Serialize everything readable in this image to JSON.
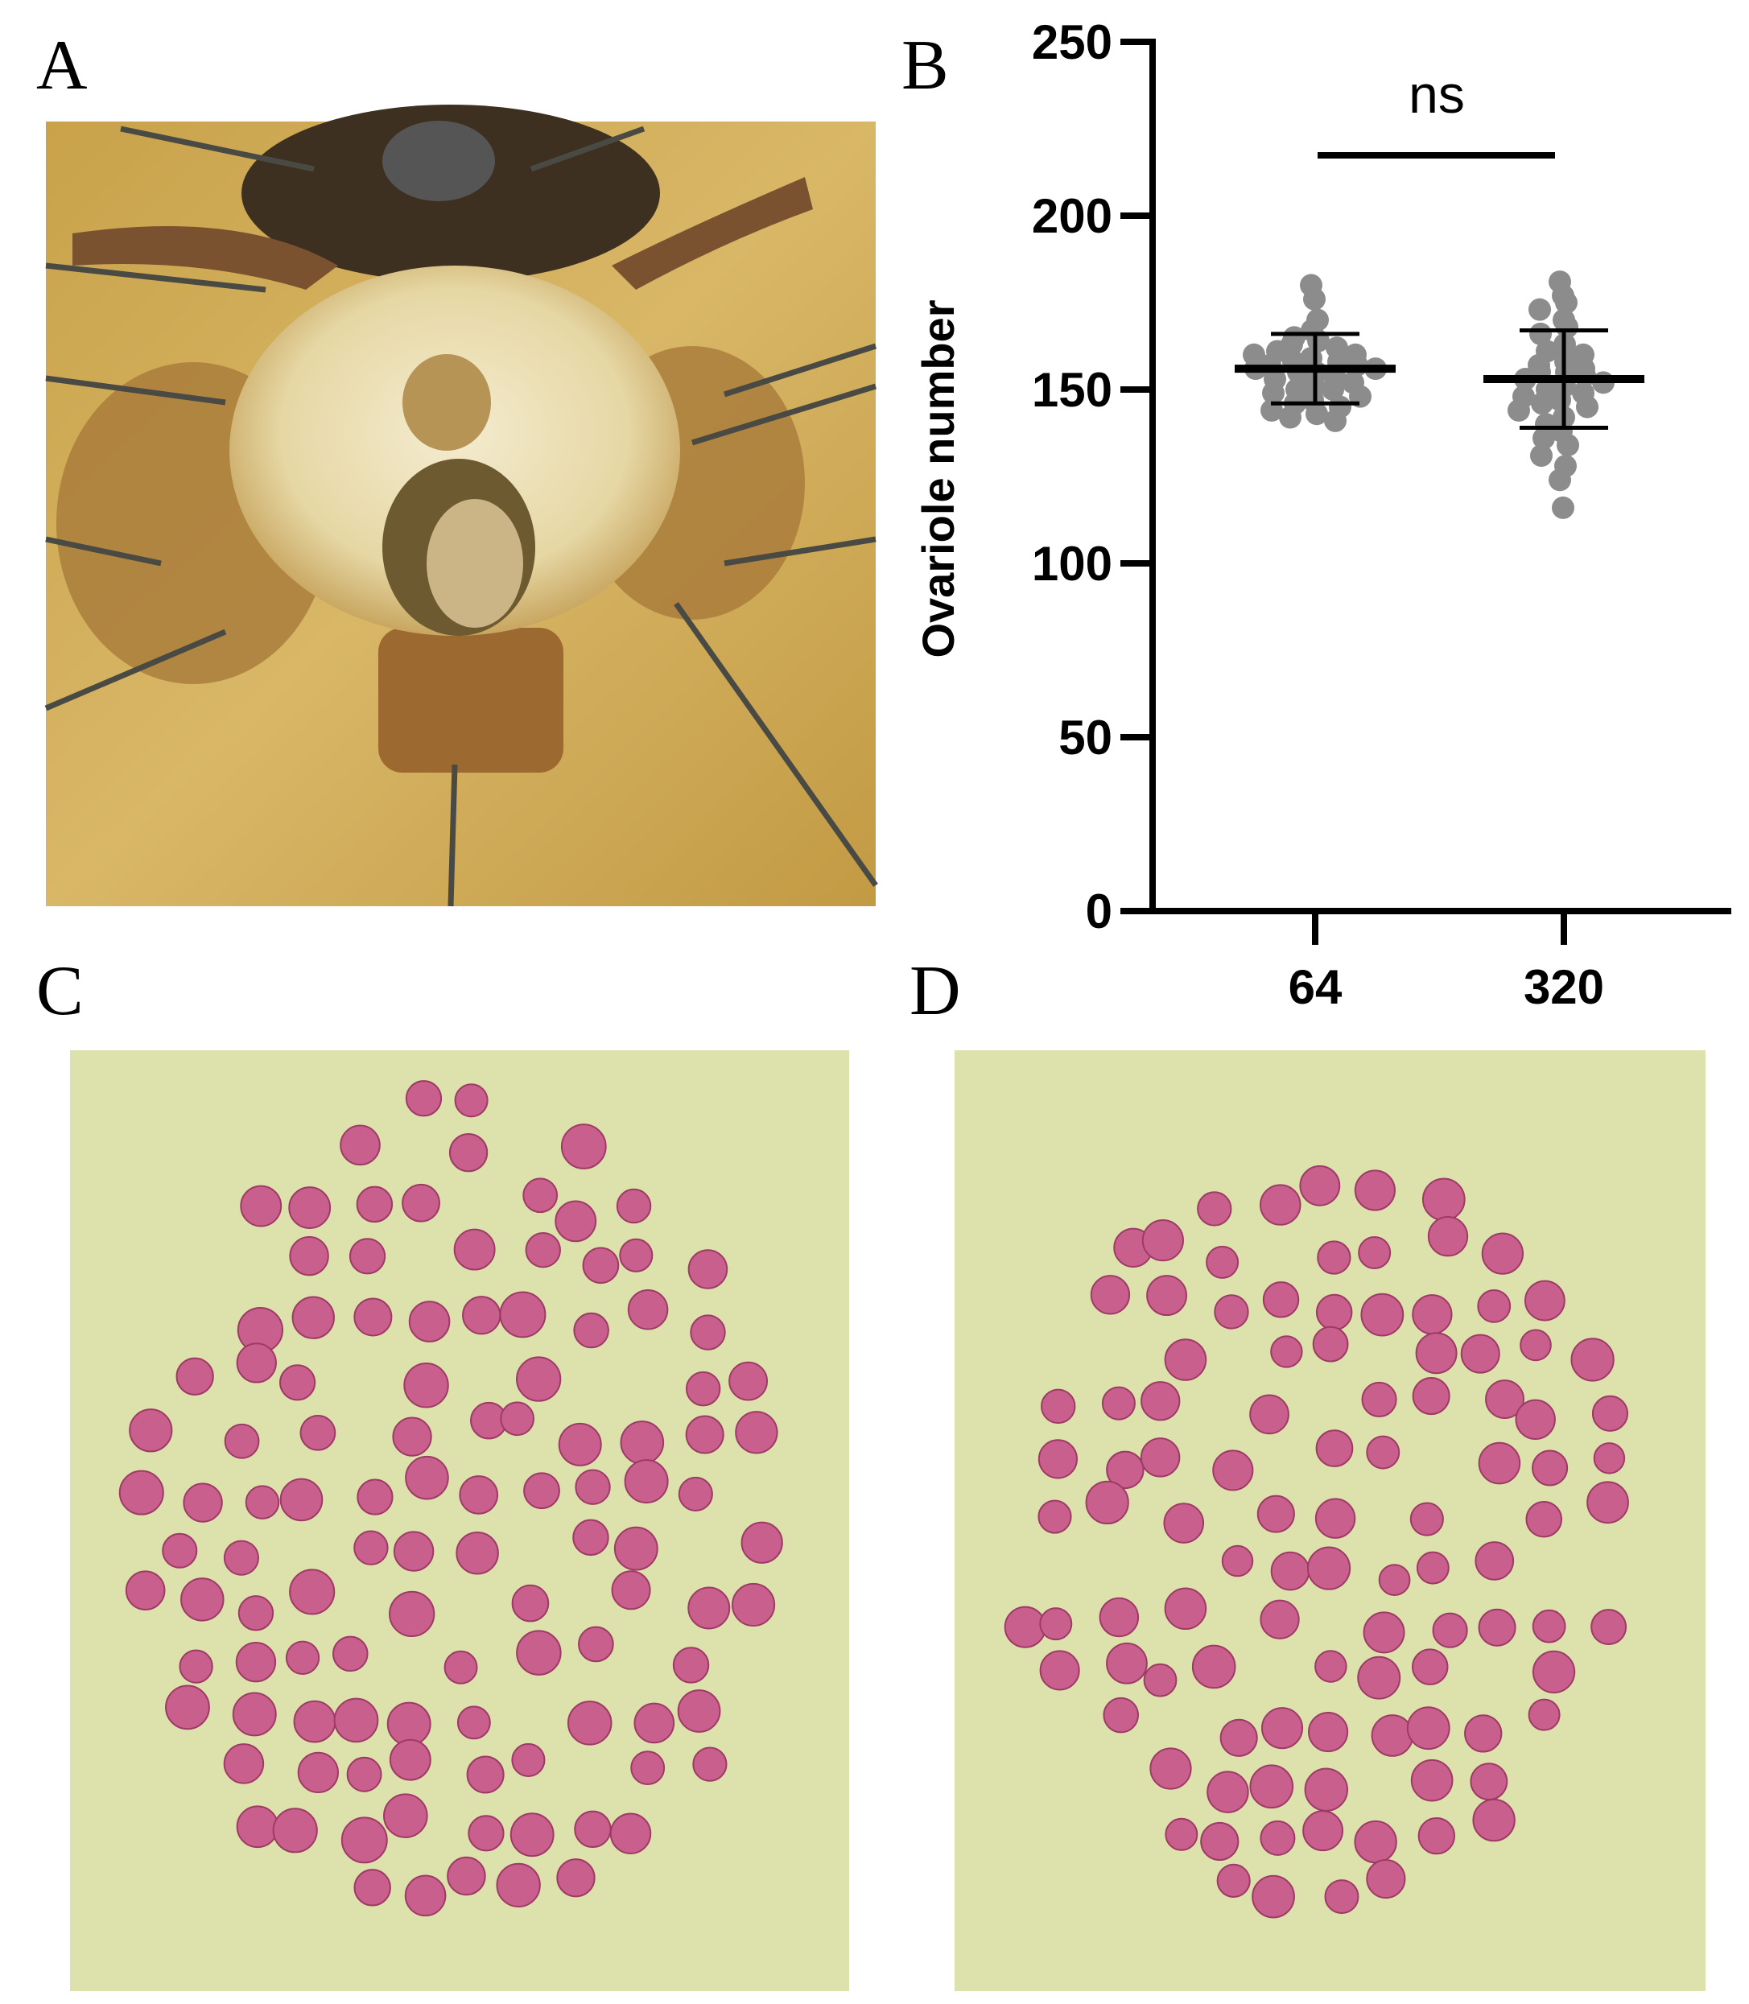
{
  "panel_labels": [
    "A",
    "B",
    "C",
    "D"
  ],
  "chart_data": {
    "type": "dotplot",
    "ylabel": "Ovariole number",
    "annotation": "ns",
    "categories": [
      "64",
      "320"
    ],
    "groups": [
      {
        "values": [
          180,
          176,
          170,
          167,
          165,
          164,
          163,
          162,
          161,
          160,
          160,
          159,
          158,
          158,
          157,
          157,
          156,
          156,
          155,
          155,
          154,
          153,
          152,
          151,
          150,
          150,
          149,
          148,
          147,
          146,
          145,
          144,
          143,
          142,
          141
        ]
      },
      {
        "values": [
          181,
          177,
          175,
          173,
          170,
          168,
          166,
          163,
          161,
          160,
          158,
          157,
          156,
          155,
          155,
          154,
          153,
          152,
          151,
          150,
          149,
          148,
          147,
          146,
          145,
          144,
          142,
          140,
          138,
          136,
          134,
          131,
          128,
          124,
          116
        ]
      }
    ],
    "means": [
      156,
      153
    ],
    "sd": [
      10,
      14
    ],
    "color": "#8c8c8c",
    "ylim": [
      0,
      250
    ],
    "yticks": [
      0,
      50,
      100,
      150,
      200,
      250
    ]
  }
}
